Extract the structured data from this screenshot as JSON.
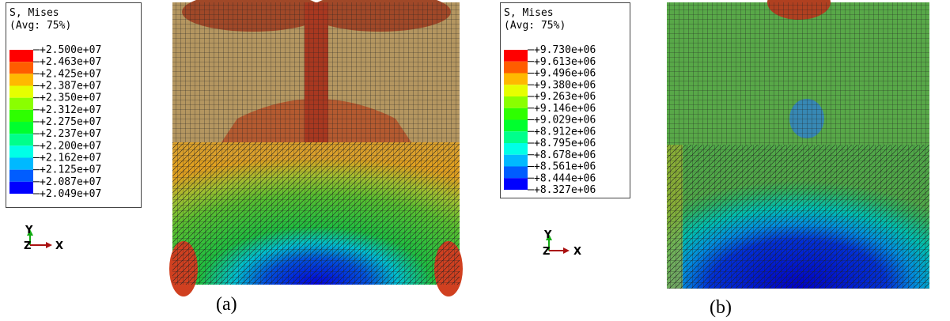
{
  "panels": [
    {
      "legend": {
        "title": "S, Mises",
        "subtitle": "(Avg: 75%)",
        "labels": [
          "+2.500e+07",
          "+2.463e+07",
          "+2.425e+07",
          "+2.387e+07",
          "+2.350e+07",
          "+2.312e+07",
          "+2.275e+07",
          "+2.237e+07",
          "+2.200e+07",
          "+2.162e+07",
          "+2.125e+07",
          "+2.087e+07",
          "+2.049e+07"
        ],
        "colors": [
          "#ff0000",
          "#ff5d00",
          "#ffb900",
          "#e6ff00",
          "#8aff00",
          "#2eff00",
          "#00ff2e",
          "#00ff8b",
          "#00ffe7",
          "#00b9ff",
          "#005dff",
          "#0000ff"
        ]
      },
      "triad": {
        "y": "Y",
        "z": "Z",
        "x": "X"
      },
      "caption": "(a)"
    },
    {
      "legend": {
        "title": "S, Mises",
        "subtitle": "(Avg: 75%)",
        "labels": [
          "+9.730e+06",
          "+9.613e+06",
          "+9.496e+06",
          "+9.380e+06",
          "+9.263e+06",
          "+9.146e+06",
          "+9.029e+06",
          "+8.912e+06",
          "+8.795e+06",
          "+8.678e+06",
          "+8.561e+06",
          "+8.444e+06",
          "+8.327e+06"
        ],
        "colors": [
          "#ff0000",
          "#ff5d00",
          "#ffb900",
          "#e6ff00",
          "#8aff00",
          "#2eff00",
          "#00ff2e",
          "#00ff8b",
          "#00ffe7",
          "#00b9ff",
          "#005dff",
          "#0000ff"
        ]
      },
      "triad": {
        "y": "Y",
        "z": "Z",
        "x": "X"
      },
      "caption": "(b)"
    }
  ]
}
